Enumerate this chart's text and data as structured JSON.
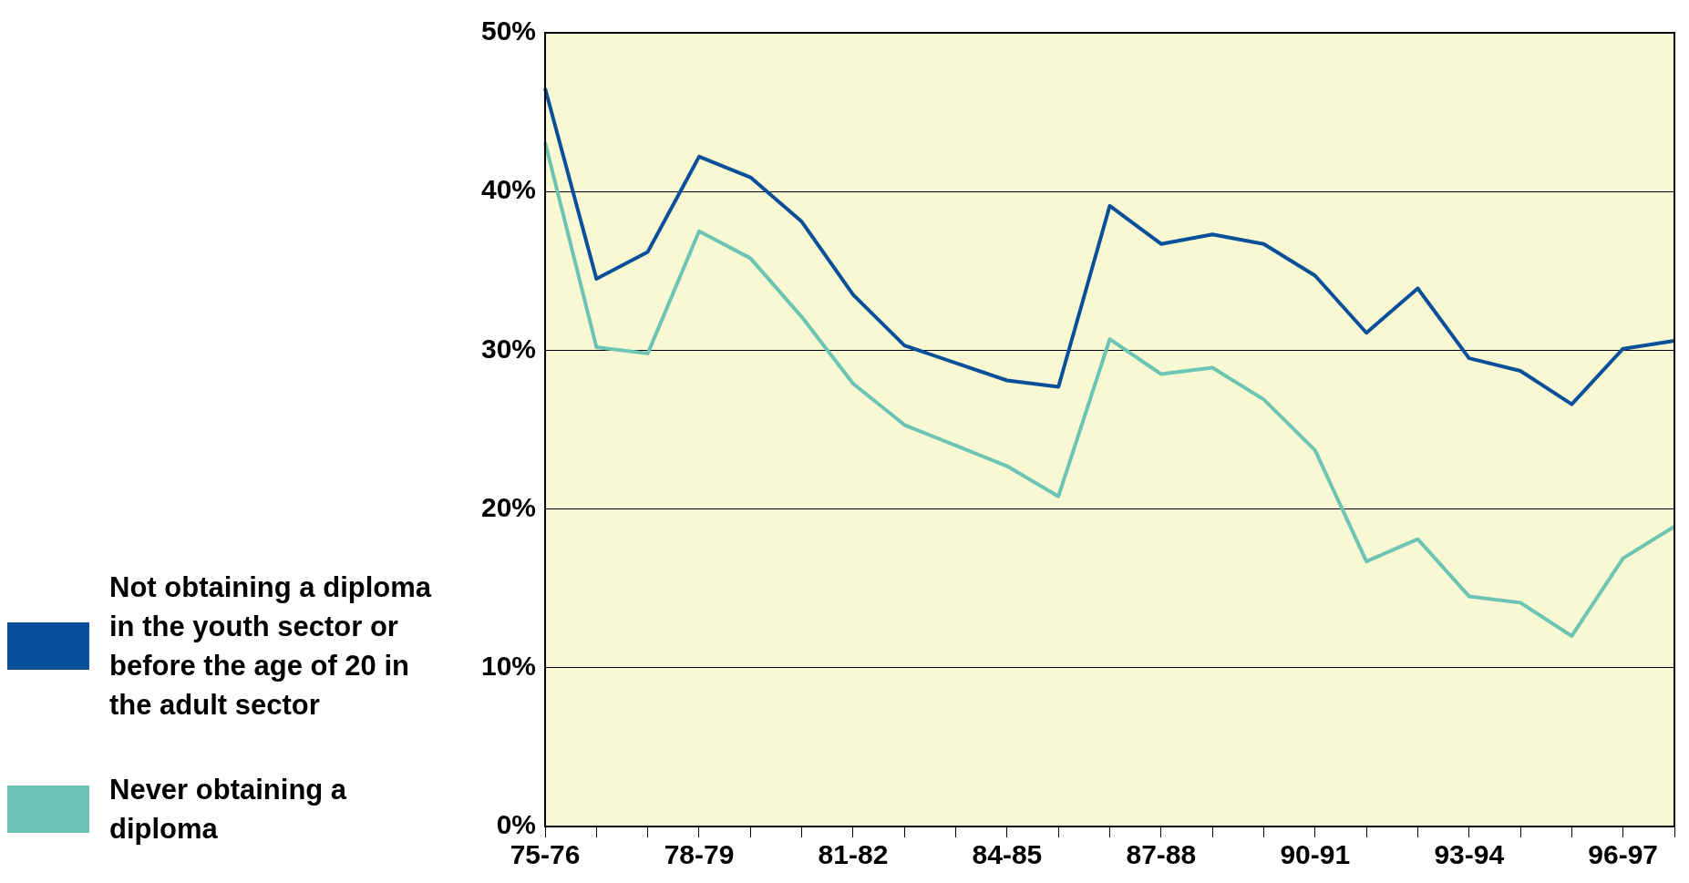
{
  "chart_data": {
    "type": "line",
    "categories": [
      "75-76",
      null,
      null,
      "78-79",
      null,
      null,
      "81-82",
      null,
      null,
      "84-85",
      null,
      null,
      "87-88",
      null,
      null,
      "90-91",
      null,
      null,
      "93-94",
      null,
      null,
      "96-97",
      null
    ],
    "series": [
      {
        "name": "Not obtaining a diploma in the youth sector or before the age of 20 in the adult sector",
        "color": "#0a4f9a",
        "values": [
          46.5,
          34.5,
          36.2,
          42.2,
          40.9,
          38.1,
          33.5,
          30.3,
          29.2,
          28.1,
          27.7,
          39.1,
          36.7,
          37.3,
          36.7,
          34.7,
          31.1,
          33.9,
          29.5,
          28.7,
          26.6,
          30.1,
          30.6
        ]
      },
      {
        "name": "Never obtaining a diploma",
        "color": "#6cc4b4",
        "values": [
          43.1,
          30.2,
          29.8,
          37.5,
          35.8,
          32.1,
          27.9,
          25.3,
          24.0,
          22.7,
          20.8,
          30.7,
          28.5,
          28.9,
          26.9,
          23.7,
          16.7,
          18.1,
          14.5,
          14.1,
          12.0,
          16.9,
          18.9
        ]
      }
    ],
    "ylim": [
      0,
      50
    ],
    "yticks": [
      {
        "value": 0,
        "label": "0%"
      },
      {
        "value": 10,
        "label": "10%"
      },
      {
        "value": 20,
        "label": "20%"
      },
      {
        "value": 30,
        "label": "30%"
      },
      {
        "value": 40,
        "label": "40%"
      },
      {
        "value": 50,
        "label": "50%"
      }
    ],
    "grid": "y",
    "legend": "left",
    "marker": "none",
    "line_style": "solid"
  }
}
